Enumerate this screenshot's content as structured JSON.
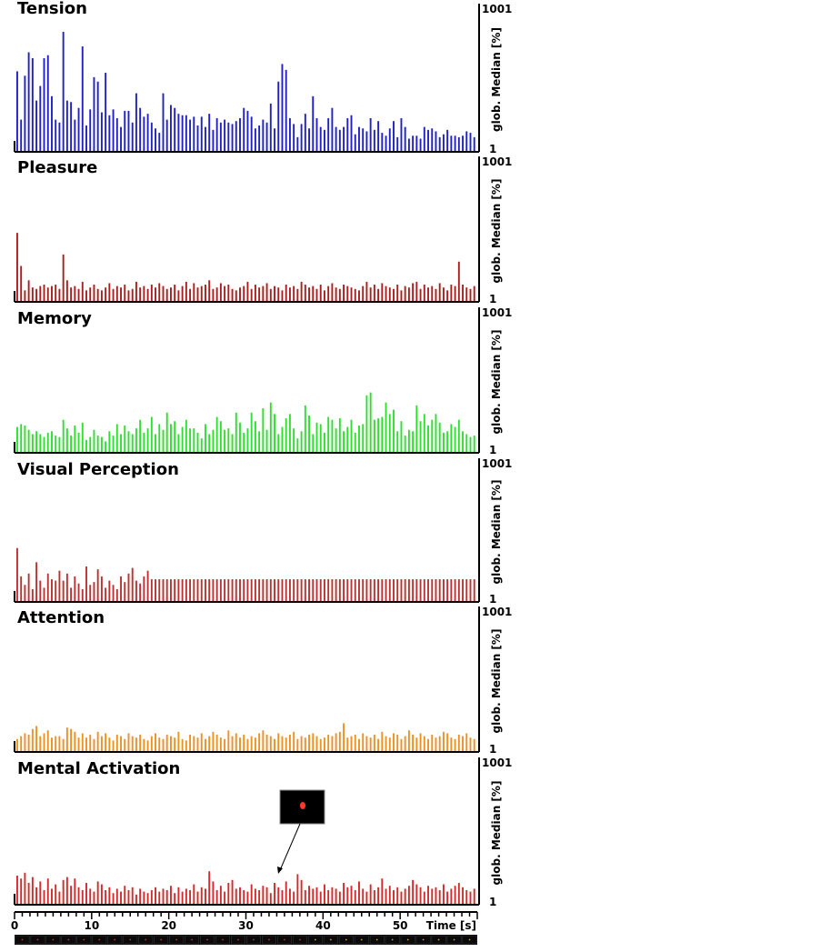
{
  "chart_data": [
    {
      "type": "bar",
      "title": "Tension",
      "color": "#2020c8",
      "ylabel": "glob. Median [%]",
      "y_ticks": [
        "1001",
        "1"
      ],
      "values": [
        55,
        22,
        52,
        68,
        64,
        35,
        45,
        64,
        66,
        38,
        22,
        20,
        82,
        35,
        34,
        22,
        30,
        72,
        18,
        29,
        51,
        48,
        27,
        54,
        25,
        29,
        23,
        17,
        28,
        28,
        20,
        40,
        30,
        24,
        26,
        20,
        16,
        13,
        40,
        22,
        32,
        30,
        26,
        25,
        25,
        22,
        24,
        18,
        24,
        17,
        26,
        15,
        23,
        20,
        22,
        20,
        19,
        21,
        23,
        30,
        28,
        24,
        16,
        18,
        22,
        20,
        33,
        16,
        48,
        60,
        56,
        23,
        19,
        10,
        19,
        26,
        16,
        38,
        23,
        17,
        15,
        23,
        30,
        17,
        15,
        17,
        23,
        25,
        12,
        17,
        16,
        14,
        23,
        15,
        21,
        13,
        11,
        16,
        21,
        10,
        23,
        17,
        9,
        11,
        11,
        9,
        17,
        15,
        16,
        14,
        10,
        12,
        15,
        11,
        11,
        10,
        11,
        14,
        13,
        10
      ]
    },
    {
      "type": "bar",
      "title": "Pleasure",
      "color": "#aa1e1e",
      "ylabel": "glob. Median [%]",
      "y_ticks": [
        "1001",
        "1"
      ],
      "values": [
        48,
        25,
        8,
        15,
        10,
        9,
        11,
        12,
        10,
        11,
        12,
        9,
        33,
        15,
        10,
        11,
        9,
        14,
        8,
        10,
        12,
        9,
        8,
        10,
        13,
        9,
        11,
        10,
        12,
        8,
        9,
        14,
        10,
        11,
        9,
        12,
        10,
        13,
        11,
        9,
        10,
        12,
        8,
        11,
        14,
        9,
        13,
        10,
        11,
        12,
        15,
        9,
        10,
        13,
        11,
        12,
        9,
        8,
        10,
        11,
        14,
        9,
        12,
        10,
        11,
        13,
        9,
        11,
        10,
        8,
        12,
        10,
        11,
        9,
        14,
        12,
        10,
        11,
        9,
        12,
        8,
        11,
        13,
        10,
        9,
        12,
        11,
        10,
        9,
        8,
        11,
        14,
        10,
        12,
        9,
        13,
        11,
        10,
        9,
        12,
        8,
        11,
        10,
        13,
        14,
        9,
        12,
        10,
        11,
        9,
        13,
        10,
        8,
        12,
        11,
        28,
        12,
        10,
        9,
        11
      ]
    },
    {
      "type": "bar",
      "title": "Memory",
      "color": "#2ee02e",
      "ylabel": "glob. Median [%]",
      "y_ticks": [
        "1001",
        "1"
      ],
      "values": [
        18,
        20,
        19,
        16,
        13,
        15,
        13,
        11,
        14,
        15,
        12,
        11,
        23,
        17,
        12,
        19,
        14,
        21,
        9,
        11,
        16,
        12,
        11,
        8,
        15,
        12,
        20,
        13,
        19,
        15,
        13,
        17,
        23,
        14,
        17,
        25,
        13,
        20,
        16,
        28,
        20,
        22,
        13,
        18,
        23,
        17,
        17,
        14,
        10,
        20,
        13,
        16,
        25,
        22,
        16,
        17,
        13,
        28,
        21,
        14,
        17,
        28,
        22,
        15,
        31,
        16,
        35,
        27,
        13,
        18,
        24,
        27,
        17,
        10,
        15,
        33,
        26,
        13,
        21,
        20,
        14,
        25,
        23,
        17,
        24,
        15,
        18,
        23,
        14,
        19,
        20,
        40,
        42,
        23,
        24,
        25,
        35,
        27,
        30,
        15,
        22,
        12,
        16,
        15,
        33,
        22,
        27,
        19,
        23,
        27,
        21,
        14,
        15,
        20,
        18,
        23,
        15,
        13,
        11,
        12
      ]
    },
    {
      "type": "bar",
      "title": "Visual Perception",
      "color": "#bc3232",
      "ylabel": "glob. Median [%]",
      "y_ticks": [
        "1001",
        "1"
      ],
      "values": [
        38,
        18,
        12,
        20,
        9,
        28,
        15,
        10,
        20,
        16,
        15,
        22,
        15,
        20,
        10,
        18,
        13,
        9,
        25,
        12,
        14,
        23,
        18,
        10,
        15,
        12,
        9,
        18,
        14,
        20,
        24,
        15,
        13,
        18,
        22,
        16,
        16,
        16,
        16,
        16,
        16,
        16,
        16,
        16,
        16,
        16,
        16,
        16,
        16,
        16,
        16,
        16,
        16,
        16,
        16,
        16,
        16,
        16,
        16,
        16,
        16,
        16,
        16,
        16,
        16,
        16,
        16,
        16,
        16,
        16,
        16,
        16,
        16,
        16,
        16,
        16,
        16,
        16,
        16,
        16,
        16,
        16,
        16,
        16,
        16,
        16,
        16,
        16,
        16,
        16,
        16,
        16,
        16,
        16,
        16,
        16,
        16,
        16,
        16,
        16,
        16,
        16,
        16,
        16,
        16,
        16,
        16,
        16,
        16,
        16,
        16,
        16,
        16,
        16,
        16,
        16,
        16,
        16,
        16,
        16
      ]
    },
    {
      "type": "bar",
      "title": "Attention",
      "color": "#ee9022",
      "ylabel": "glob. Median [%]",
      "y_ticks": [
        "1001",
        "1"
      ],
      "values": [
        9,
        11,
        13,
        12,
        16,
        18,
        11,
        13,
        15,
        10,
        11,
        11,
        9,
        17,
        16,
        14,
        10,
        13,
        10,
        12,
        9,
        14,
        11,
        13,
        10,
        8,
        12,
        11,
        9,
        13,
        11,
        10,
        12,
        9,
        8,
        11,
        13,
        10,
        9,
        12,
        11,
        10,
        14,
        9,
        8,
        12,
        11,
        10,
        13,
        9,
        11,
        14,
        12,
        10,
        9,
        15,
        11,
        13,
        10,
        12,
        9,
        11,
        10,
        13,
        15,
        12,
        11,
        9,
        13,
        11,
        10,
        12,
        14,
        9,
        11,
        10,
        12,
        13,
        11,
        9,
        10,
        12,
        11,
        13,
        14,
        20,
        10,
        11,
        12,
        9,
        13,
        11,
        10,
        12,
        9,
        14,
        11,
        10,
        13,
        12,
        9,
        11,
        15,
        12,
        10,
        13,
        11,
        9,
        12,
        10,
        11,
        14,
        13,
        10,
        9,
        12,
        11,
        13,
        10,
        9
      ]
    },
    {
      "type": "bar",
      "title": "Mental Activation",
      "color": "#d42a2a",
      "ylabel": "glob. Median [%]",
      "y_ticks": [
        "1001",
        "1"
      ],
      "xlabel": "Time [s]",
      "x_ticks": [
        "0",
        "10",
        "20",
        "30",
        "40",
        "50"
      ],
      "x_range": [
        0,
        60
      ],
      "values": [
        20,
        18,
        22,
        15,
        19,
        12,
        16,
        10,
        18,
        11,
        14,
        9,
        17,
        19,
        13,
        18,
        12,
        10,
        15,
        11,
        9,
        16,
        14,
        10,
        12,
        8,
        11,
        9,
        13,
        10,
        12,
        7,
        11,
        9,
        8,
        10,
        12,
        9,
        11,
        10,
        13,
        8,
        12,
        9,
        11,
        10,
        14,
        9,
        12,
        11,
        23,
        16,
        10,
        13,
        9,
        15,
        17,
        11,
        12,
        10,
        9,
        14,
        11,
        10,
        13,
        12,
        8,
        15,
        12,
        10,
        16,
        11,
        9,
        21,
        17,
        10,
        13,
        11,
        12,
        9,
        14,
        10,
        12,
        11,
        9,
        15,
        12,
        13,
        10,
        16,
        11,
        9,
        14,
        10,
        12,
        18,
        11,
        13,
        10,
        12,
        9,
        11,
        13,
        17,
        14,
        12,
        9,
        13,
        11,
        12,
        10,
        14,
        9,
        11,
        13,
        15,
        12,
        10,
        9,
        11
      ]
    }
  ]
}
